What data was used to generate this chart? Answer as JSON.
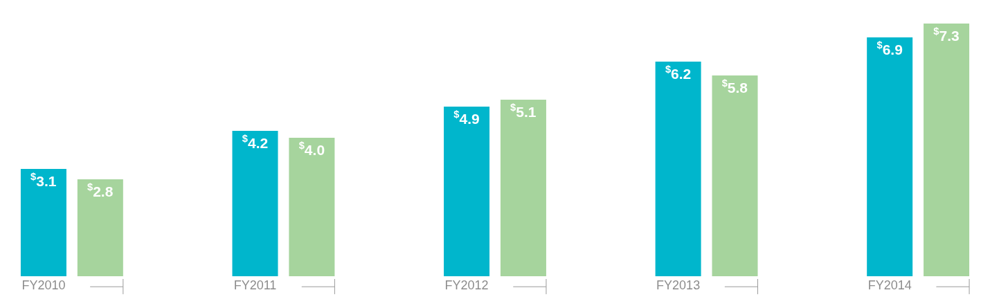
{
  "chart_data": {
    "type": "bar",
    "categories": [
      "FY2010",
      "FY2011",
      "FY2012",
      "FY2013",
      "FY2014"
    ],
    "series": [
      {
        "color": "#00b6cc",
        "values": [
          3.1,
          4.2,
          4.9,
          6.2,
          6.9
        ],
        "value_labels": [
          "$^{$}$3.1",
          "$^{$}$4.2",
          "$^{$}$4.9",
          "$^{$}$6.2",
          "$^{$}$6.9"
        ]
      },
      {
        "color": "#a6d49d",
        "values": [
          2.8,
          4.0,
          5.1,
          5.8,
          7.3
        ],
        "value_labels": [
          "$^{$}$2.8",
          "$^{$}$4.0",
          "$^{$}$5.1",
          "$^{$}$5.8",
          "$^{$}$7.3"
        ]
      }
    ],
    "ylim": [
      0,
      7.98
    ]
  }
}
